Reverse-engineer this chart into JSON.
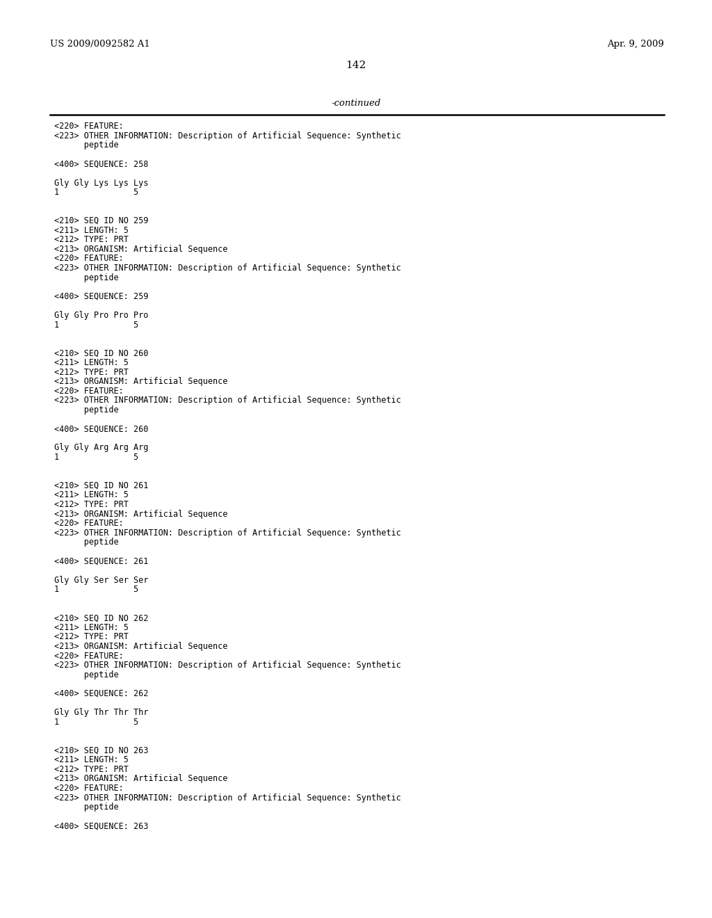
{
  "page_number": "142",
  "left_header": "US 2009/0092582 A1",
  "right_header": "Apr. 9, 2009",
  "continued_label": "-continued",
  "background_color": "#ffffff",
  "text_color": "#000000",
  "font_size": 8.5,
  "header_font_size": 10,
  "content": [
    "<220> FEATURE:",
    "<223> OTHER INFORMATION: Description of Artificial Sequence: Synthetic",
    "      peptide",
    "",
    "<400> SEQUENCE: 258",
    "",
    "Gly Gly Lys Lys Lys",
    "1               5",
    "",
    "",
    "<210> SEQ ID NO 259",
    "<211> LENGTH: 5",
    "<212> TYPE: PRT",
    "<213> ORGANISM: Artificial Sequence",
    "<220> FEATURE:",
    "<223> OTHER INFORMATION: Description of Artificial Sequence: Synthetic",
    "      peptide",
    "",
    "<400> SEQUENCE: 259",
    "",
    "Gly Gly Pro Pro Pro",
    "1               5",
    "",
    "",
    "<210> SEQ ID NO 260",
    "<211> LENGTH: 5",
    "<212> TYPE: PRT",
    "<213> ORGANISM: Artificial Sequence",
    "<220> FEATURE:",
    "<223> OTHER INFORMATION: Description of Artificial Sequence: Synthetic",
    "      peptide",
    "",
    "<400> SEQUENCE: 260",
    "",
    "Gly Gly Arg Arg Arg",
    "1               5",
    "",
    "",
    "<210> SEQ ID NO 261",
    "<211> LENGTH: 5",
    "<212> TYPE: PRT",
    "<213> ORGANISM: Artificial Sequence",
    "<220> FEATURE:",
    "<223> OTHER INFORMATION: Description of Artificial Sequence: Synthetic",
    "      peptide",
    "",
    "<400> SEQUENCE: 261",
    "",
    "Gly Gly Ser Ser Ser",
    "1               5",
    "",
    "",
    "<210> SEQ ID NO 262",
    "<211> LENGTH: 5",
    "<212> TYPE: PRT",
    "<213> ORGANISM: Artificial Sequence",
    "<220> FEATURE:",
    "<223> OTHER INFORMATION: Description of Artificial Sequence: Synthetic",
    "      peptide",
    "",
    "<400> SEQUENCE: 262",
    "",
    "Gly Gly Thr Thr Thr",
    "1               5",
    "",
    "",
    "<210> SEQ ID NO 263",
    "<211> LENGTH: 5",
    "<212> TYPE: PRT",
    "<213> ORGANISM: Artificial Sequence",
    "<220> FEATURE:",
    "<223> OTHER INFORMATION: Description of Artificial Sequence: Synthetic",
    "      peptide",
    "",
    "<400> SEQUENCE: 263"
  ]
}
